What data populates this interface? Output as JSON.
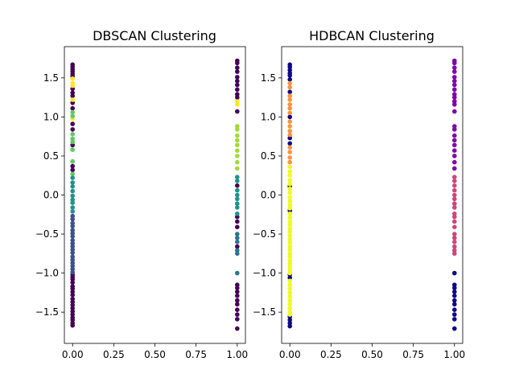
{
  "chart_data": [
    {
      "type": "scatter",
      "title": "DBSCAN Clustering",
      "xlim": [
        -0.05,
        1.05
      ],
      "ylim": [
        -1.9,
        1.9
      ],
      "xticks": [
        "0.00",
        "0.25",
        "0.50",
        "0.75",
        "1.00"
      ],
      "xtick_values": [
        0,
        0.25,
        0.5,
        0.75,
        1.0
      ],
      "yticks": [
        "−1.5",
        "−1.0",
        "−0.5",
        "0.0",
        "0.5",
        "1.0",
        "1.5"
      ],
      "ytick_values": [
        -1.5,
        -1.0,
        -0.5,
        0.0,
        0.5,
        1.0,
        1.5
      ],
      "grid": false,
      "colormap": "viridis",
      "series": [
        {
          "x": 0,
          "color": "#440154",
          "y": [
            1.67,
            1.64,
            1.61,
            1.58,
            1.55,
            1.52,
            1.36,
            1.31,
            1.27,
            1.18,
            1.11,
            0.91,
            0.84,
            0.64,
            0.37,
            0.32,
            -1.02,
            -1.05,
            -1.08,
            -1.12,
            -1.17,
            -1.2,
            -1.24,
            -1.28,
            -1.33,
            -1.37,
            -1.41,
            -1.45,
            -1.49,
            -1.53,
            -1.57,
            -1.6,
            -1.64,
            -1.67
          ]
        },
        {
          "x": 0,
          "color": "#fde725",
          "y": [
            1.49,
            1.43,
            1.4,
            1.22,
            0.98
          ]
        },
        {
          "x": 0,
          "color": "#5ec962",
          "y": [
            1.06,
            1.01,
            0.78,
            0.72,
            0.68,
            0.58,
            0.43,
            0.27
          ]
        },
        {
          "x": 0,
          "color": "#21918c",
          "y": [
            0.22,
            0.16,
            0.11,
            0.05,
            -0.01,
            -0.06,
            -0.1,
            -0.16,
            -0.21
          ]
        },
        {
          "x": 0,
          "color": "#3b528b",
          "y": [
            -0.27,
            -0.31,
            -0.36,
            -0.4,
            -0.45,
            -0.49,
            -0.53,
            -0.58,
            -0.62,
            -0.66,
            -0.7,
            -0.74,
            -0.79,
            -0.83,
            -0.87,
            -0.91,
            -0.95,
            -0.99
          ]
        },
        {
          "x": 1,
          "color": "#440154",
          "y": [
            1.72,
            1.69,
            1.63,
            1.58,
            1.51,
            1.46,
            1.41,
            1.35,
            1.29,
            1.25,
            1.07,
            0.12,
            -0.28,
            -0.34,
            -0.41,
            -0.66,
            -1.15,
            -1.19,
            -1.24,
            -1.29,
            -1.35,
            -1.4,
            -1.47,
            -1.53,
            -1.59,
            -1.71
          ]
        },
        {
          "x": 1,
          "color": "#fde725",
          "y": [
            1.2,
            1.16
          ]
        },
        {
          "x": 1,
          "color": "#a0da39",
          "y": [
            0.88,
            0.84,
            0.76,
            0.7,
            0.64,
            0.57,
            0.5,
            0.42,
            0.34
          ]
        },
        {
          "x": 1,
          "color": "#21918c",
          "y": [
            0.23,
            0.18,
            0.06,
            0.0,
            -0.05,
            -0.11,
            -0.16,
            -0.24
          ]
        },
        {
          "x": 1,
          "color": "#2c728e",
          "y": [
            -0.5,
            -0.55,
            -0.6,
            -0.71,
            -0.75,
            -1.0
          ]
        }
      ]
    },
    {
      "type": "scatter",
      "title": "HDBCAN Clustering",
      "xlim": [
        -0.05,
        1.05
      ],
      "ylim": [
        -1.9,
        1.9
      ],
      "xticks": [
        "0.00",
        "0.25",
        "0.50",
        "0.75",
        "1.00"
      ],
      "xtick_values": [
        0,
        0.25,
        0.5,
        0.75,
        1.0
      ],
      "yticks": [
        "−1.5",
        "−1.0",
        "−0.5",
        "0.0",
        "0.5",
        "1.0",
        "1.5"
      ],
      "ytick_values": [
        -1.5,
        -1.0,
        -0.5,
        0.0,
        0.5,
        1.0,
        1.5
      ],
      "grid": false,
      "colormap": "plasma",
      "series": [
        {
          "x": 0,
          "color": "#0d0887",
          "y": [
            1.67,
            1.64,
            1.6,
            1.56,
            1.53,
            1.48,
            1.32,
            1.0,
            0.73,
            0.66,
            0.11,
            -0.2,
            -1.02,
            -1.06,
            -1.56,
            -1.6,
            -1.64,
            -1.68
          ]
        },
        {
          "x": 0,
          "color": "#f89540",
          "y": [
            1.43,
            1.38,
            1.27,
            1.22,
            1.16,
            1.11,
            1.05,
            0.94,
            0.88,
            0.82,
            0.77,
            0.61,
            0.55,
            0.48,
            0.42
          ]
        },
        {
          "x": 0,
          "color": "#f0f921",
          "y": [
            0.36,
            0.3,
            0.25,
            0.19,
            0.14,
            0.08,
            0.03,
            -0.03,
            -0.08,
            -0.13,
            -0.17,
            -0.24,
            -0.29,
            -0.34,
            -0.38,
            -0.43,
            -0.47,
            -0.52,
            -0.57,
            -0.61,
            -0.66,
            -0.7,
            -0.75,
            -0.79,
            -0.84,
            -0.88,
            -0.92,
            -0.96,
            -1.0,
            -1.1,
            -1.15,
            -1.2,
            -1.25,
            -1.3,
            -1.35,
            -1.4,
            -1.45,
            -1.5,
            -1.53
          ]
        },
        {
          "x": 1,
          "color": "#7e03a8",
          "y": [
            1.72,
            1.69,
            1.63,
            1.58,
            1.51,
            1.46,
            1.41,
            1.35,
            1.29,
            1.25,
            1.2,
            1.16,
            1.07,
            0.88,
            0.84,
            0.76,
            0.7,
            0.64,
            0.57,
            0.5,
            0.42,
            0.34
          ]
        },
        {
          "x": 1,
          "color": "#cc4778",
          "y": [
            0.23,
            0.18,
            0.12,
            0.06,
            0.0,
            -0.05,
            -0.11,
            -0.16,
            -0.24,
            -0.28,
            -0.34,
            -0.41,
            -0.5,
            -0.55,
            -0.6,
            -0.66,
            -0.71,
            -0.75
          ]
        },
        {
          "x": 1,
          "color": "#0d0887",
          "y": [
            -1.0,
            -1.15,
            -1.19,
            -1.24,
            -1.29,
            -1.35,
            -1.4,
            -1.47,
            -1.53,
            -1.59,
            -1.71
          ]
        }
      ]
    }
  ]
}
